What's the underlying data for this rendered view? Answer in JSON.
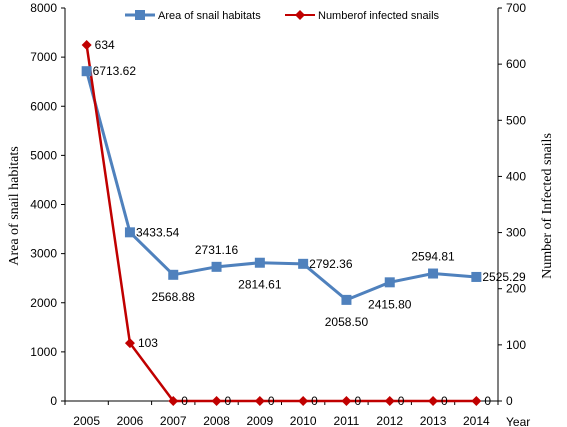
{
  "chart_data": {
    "type": "line",
    "categories": [
      "2005",
      "2006",
      "2007",
      "2008",
      "2009",
      "2010",
      "2011",
      "2012",
      "2013",
      "2014"
    ],
    "xlabel": "Year",
    "legend_position": "top",
    "grid": false,
    "series": [
      {
        "name": "Area of snail habitats",
        "axis": "left",
        "color": "#4F81BD",
        "marker": "square",
        "values": [
          6713.62,
          3433.54,
          2568.88,
          2731.16,
          2814.61,
          2792.36,
          2058.5,
          2415.8,
          2594.81,
          2525.29
        ],
        "labels": [
          "6713.62",
          "3433.54",
          "2568.88",
          "2731.16",
          "2814.61",
          "2792.36",
          "2058.50",
          "2415.80",
          "2594.81",
          "2525.29"
        ]
      },
      {
        "name": "Numberof infected snails",
        "axis": "right",
        "color": "#C00000",
        "marker": "diamond",
        "values": [
          634,
          103,
          0,
          0,
          0,
          0,
          0,
          0,
          0,
          0
        ],
        "labels": [
          "634",
          "103",
          "0",
          "0",
          "0",
          "0",
          "0",
          "0",
          "0",
          "0"
        ]
      }
    ],
    "y_left": {
      "label": "Area  of snail habitats",
      "ylim": [
        0,
        8000
      ],
      "ticks": [
        "0",
        "1000",
        "2000",
        "3000",
        "4000",
        "5000",
        "6000",
        "7000",
        "8000"
      ]
    },
    "y_right": {
      "label": "Number of Infected snails",
      "ylim": [
        0,
        700
      ],
      "ticks": [
        "0",
        "100",
        "200",
        "300",
        "400",
        "500",
        "600",
        "700"
      ]
    }
  }
}
